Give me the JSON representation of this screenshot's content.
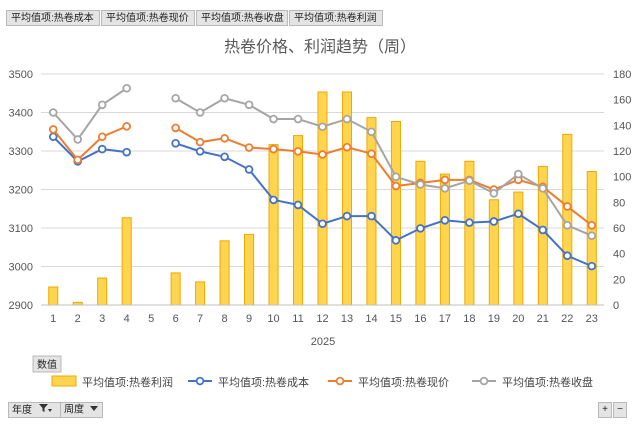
{
  "field_buttons": [
    "平均值项:热卷成本",
    "平均值项:热卷现价",
    "平均值项:热卷收盘",
    "平均值项:热卷利润"
  ],
  "values_label": "数值",
  "axis_fields": [
    {
      "label": "年度",
      "icon": "filter-icon"
    },
    {
      "label": "周度",
      "icon": "dropdown-icon"
    }
  ],
  "zoom_buttons": [
    "+",
    "−"
  ],
  "colors": {
    "bar": "#ffd54f",
    "bar_edge": "#f0a800",
    "cost": "#4472c4",
    "price": "#ed7d31",
    "close": "#a5a5a5"
  },
  "chart_data": {
    "type": "bar+line",
    "title": "热卷价格、利润趋势（周）",
    "x": [
      1,
      2,
      3,
      4,
      5,
      6,
      7,
      8,
      9,
      10,
      11,
      12,
      13,
      14,
      15,
      16,
      17,
      18,
      19,
      20,
      21,
      22,
      23
    ],
    "x_group_label": "2025",
    "y_left": {
      "min": 2900,
      "max": 3500,
      "ticks": [
        2900,
        3000,
        3100,
        3200,
        3300,
        3400,
        3500
      ]
    },
    "y_right": {
      "min": 0,
      "max": 180,
      "ticks": [
        0,
        20,
        40,
        60,
        80,
        100,
        120,
        140,
        160,
        180
      ]
    },
    "grid": true,
    "legend_position": "bottom",
    "bar_series": {
      "name": "平均值项:热卷利润",
      "axis": "right",
      "values": [
        14,
        2,
        21,
        68,
        null,
        25,
        18,
        50,
        55,
        125,
        132,
        166,
        166,
        146,
        143,
        112,
        102,
        112,
        82,
        88,
        108,
        133,
        104
      ]
    },
    "line_series": [
      {
        "name": "平均值项:热卷成本",
        "axis": "left",
        "color": "#4472c4",
        "values": [
          3337,
          3273,
          3305,
          3297,
          null,
          3320,
          3299,
          3285,
          3252,
          3173,
          3160,
          3111,
          3131,
          3131,
          3068,
          3099,
          3120,
          3114,
          3117,
          3137,
          3095,
          3028,
          3001
        ]
      },
      {
        "name": "平均值项:热卷现价",
        "axis": "left",
        "color": "#ed7d31",
        "values": [
          3356,
          3277,
          3337,
          3364,
          null,
          3360,
          3323,
          3333,
          3309,
          3305,
          3299,
          3291,
          3310,
          3293,
          3209,
          3217,
          3225,
          3225,
          3200,
          3225,
          3207,
          3156,
          3107
        ]
      },
      {
        "name": "平均值项:热卷收盘",
        "axis": "left",
        "color": "#a5a5a5",
        "values": [
          3400,
          3330,
          3420,
          3463,
          null,
          3437,
          3400,
          3437,
          3420,
          3383,
          3383,
          3363,
          3383,
          3350,
          3233,
          3213,
          3203,
          3223,
          3190,
          3240,
          3203,
          3107,
          3080
        ]
      }
    ]
  }
}
